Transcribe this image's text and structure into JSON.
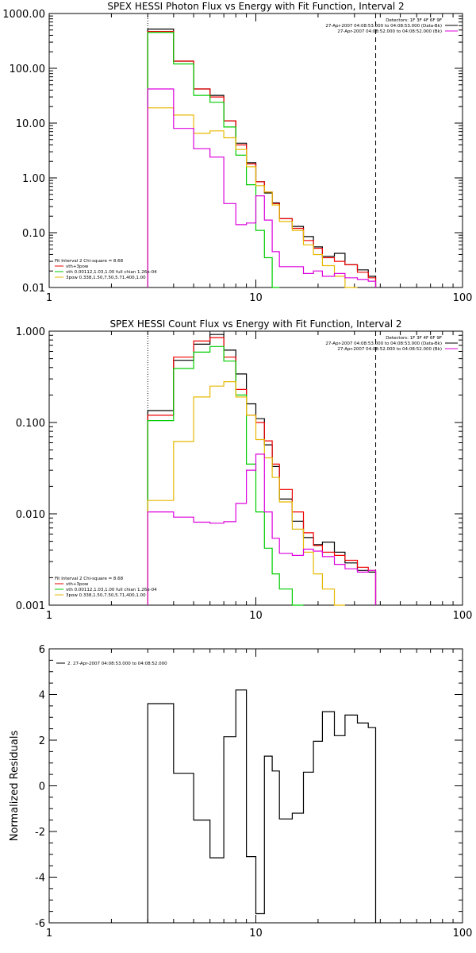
{
  "chart_data": [
    {
      "type": "line",
      "title": "SPEX HESSI Photon Flux vs Energy with Fit Function, Interval 2",
      "ylabel": "",
      "xlabel": "",
      "xscale": "log",
      "yscale": "log",
      "xlim": [
        1,
        100
      ],
      "ylim": [
        0.01,
        1000
      ],
      "x_ticks": [
        "1",
        "10",
        "100"
      ],
      "y_ticks": [
        "0.01",
        "0.10",
        "1.00",
        "10.00",
        "100.00",
        "1000.00"
      ],
      "markers": {
        "dotted_x": 3,
        "dashed_x": 38
      },
      "info_lines": [
        "Detectors: 1F 3F 4F 6F 9F",
        "27-Apr-2007 04:08:53.000 to 04:08:53.000 (Data-Bk)",
        "27-Apr-2007 04:08:52.000 to 04:08:52.000 (Bk)"
      ],
      "legend_title": "Fit Interval 2   Chi-square = 8.68",
      "legend": [
        {
          "label": "vth+3pow",
          "color": "#ee0000"
        },
        {
          "label": "vth 0.00112,1.03,1.00  full chian 1.26e-04",
          "color": "#00cc00"
        },
        {
          "label": "3pow 0.338,1.50,7.50,5.71,400,1.00",
          "color": "#e6b800"
        }
      ],
      "edges": [
        3,
        4,
        5,
        6,
        7,
        8,
        9,
        10,
        11,
        12,
        13,
        15,
        17,
        19,
        21,
        24,
        27,
        31,
        35,
        38
      ],
      "series": [
        {
          "color": "#000000",
          "values": [
            520,
            135,
            42,
            32,
            11,
            4.3,
            1.9,
            0.85,
            0.53,
            0.35,
            0.18,
            0.13,
            0.085,
            0.055,
            0.037,
            0.042,
            0.026,
            0.021,
            0.016
          ]
        },
        {
          "color": "#ee0000",
          "values": [
            470,
            135,
            42,
            30,
            11,
            4.0,
            1.8,
            0.85,
            0.55,
            0.34,
            0.18,
            0.12,
            0.072,
            0.052,
            0.035,
            0.03,
            0.026,
            0.019,
            0.015
          ]
        },
        {
          "color": "#00cc00",
          "values": [
            450,
            120,
            32,
            24,
            8.5,
            2.6,
            0.75,
            0.11,
            0.035,
            0.009
          ]
        },
        {
          "color": "#e6b800",
          "values": [
            19,
            14,
            6.5,
            7.2,
            5.4,
            3.3,
            1.6,
            0.72,
            0.55,
            0.32,
            0.16,
            0.11,
            0.06,
            0.04,
            0.025,
            0.016,
            0.009
          ]
        },
        {
          "color": "#dd00dd",
          "values": [
            42,
            8,
            3.4,
            2.4,
            0.34,
            0.14,
            0.15,
            0.47,
            0.17,
            0.045,
            0.024,
            0.024,
            0.018,
            0.02,
            0.016,
            0.018,
            0.015,
            0.014,
            0.013
          ]
        }
      ]
    },
    {
      "type": "line",
      "title": "SPEX HESSI Count Flux vs Energy with Fit Function, Interval 2",
      "ylabel": "",
      "xlabel": "",
      "xscale": "log",
      "yscale": "log",
      "xlim": [
        1,
        100
      ],
      "ylim": [
        0.001,
        1
      ],
      "x_ticks": [
        "1",
        "10",
        "100"
      ],
      "y_ticks": [
        "0.001",
        "0.010",
        "0.100",
        "1.000"
      ],
      "markers": {
        "dotted_x": 3,
        "dashed_x": 38
      },
      "info_lines": [
        "Detectors: 1F 3F 4F 6F 9F",
        "27-Apr-2007 04:08:53.000 to 04:08:53.000 (Data-Bk)",
        "27-Apr-2007 04:08:52.000 to 04:08:52.000 (Bk)"
      ],
      "legend_title": "Fit Interval 2   Chi-square = 8.68",
      "legend": [
        {
          "label": "vth+3pow",
          "color": "#ee0000"
        },
        {
          "label": "vth 0.00112,1.03,1.00  full chian 1.26e-04",
          "color": "#00cc00"
        },
        {
          "label": "3pow 0.338,1.50,7.50,5.71,400,1.00",
          "color": "#e6b800"
        }
      ],
      "edges": [
        3,
        4,
        5,
        6,
        7,
        8,
        9,
        10,
        11,
        12,
        13,
        15,
        17,
        19,
        21,
        24,
        27,
        31,
        35,
        38
      ],
      "series": [
        {
          "color": "#000000",
          "values": [
            0.135,
            0.48,
            0.72,
            0.92,
            0.62,
            0.34,
            0.16,
            0.11,
            0.057,
            0.033,
            0.0145,
            0.0083,
            0.0055,
            0.0046,
            0.0049,
            0.0038,
            0.0029,
            0.0024,
            0.0023
          ]
        },
        {
          "color": "#ee0000",
          "values": [
            0.12,
            0.52,
            0.78,
            0.85,
            0.52,
            0.23,
            0.12,
            0.1,
            0.063,
            0.035,
            0.0185,
            0.0105,
            0.0062,
            0.0045,
            0.0038,
            0.0035,
            0.0031,
            0.0026,
            0.0024
          ]
        },
        {
          "color": "#00cc00",
          "values": [
            0.105,
            0.39,
            0.59,
            0.68,
            0.47,
            0.2,
            0.035,
            0.0105,
            0.0042,
            0.0022,
            0.0015,
            0.001
          ]
        },
        {
          "color": "#e6b800",
          "values": [
            0.014,
            0.062,
            0.19,
            0.25,
            0.28,
            0.19,
            0.12,
            0.065,
            0.041,
            0.025,
            0.0135,
            0.0068,
            0.0038,
            0.0022,
            0.0015,
            0.001
          ]
        },
        {
          "color": "#dd00dd",
          "values": [
            0.0105,
            0.0092,
            0.0081,
            0.0079,
            0.0082,
            0.013,
            0.03,
            0.045,
            0.0105,
            0.0054,
            0.0037,
            0.0035,
            0.0041,
            0.0039,
            0.0034,
            0.0028,
            0.0025,
            0.0023,
            0.0024
          ]
        }
      ]
    },
    {
      "type": "line",
      "title": "",
      "xlabel": "",
      "ylabel": "Normalized Residuals",
      "xscale": "log",
      "yscale": "linear",
      "xlim": [
        1,
        100
      ],
      "ylim": [
        -6,
        6
      ],
      "x_ticks": [
        "1",
        "10",
        "100"
      ],
      "y_ticks": [
        "-6",
        "-4",
        "-2",
        "0",
        "2",
        "4",
        "6"
      ],
      "legend": [
        {
          "label": "2. 27-Apr-2007 04:08:53.000 to 04:08:52.000",
          "color": "#000000"
        }
      ],
      "edges": [
        3,
        4,
        5,
        6,
        7,
        8,
        9,
        10,
        11,
        12,
        13,
        15,
        17,
        19,
        21,
        24,
        27,
        31,
        35,
        38
      ],
      "series": [
        {
          "color": "#000000",
          "values": [
            3.6,
            0.55,
            -1.5,
            -3.15,
            2.15,
            4.2,
            -3.1,
            -5.6,
            1.3,
            0.65,
            -1.45,
            -1.2,
            0.6,
            1.95,
            3.25,
            2.2,
            3.1,
            2.75,
            2.55
          ]
        }
      ]
    }
  ]
}
